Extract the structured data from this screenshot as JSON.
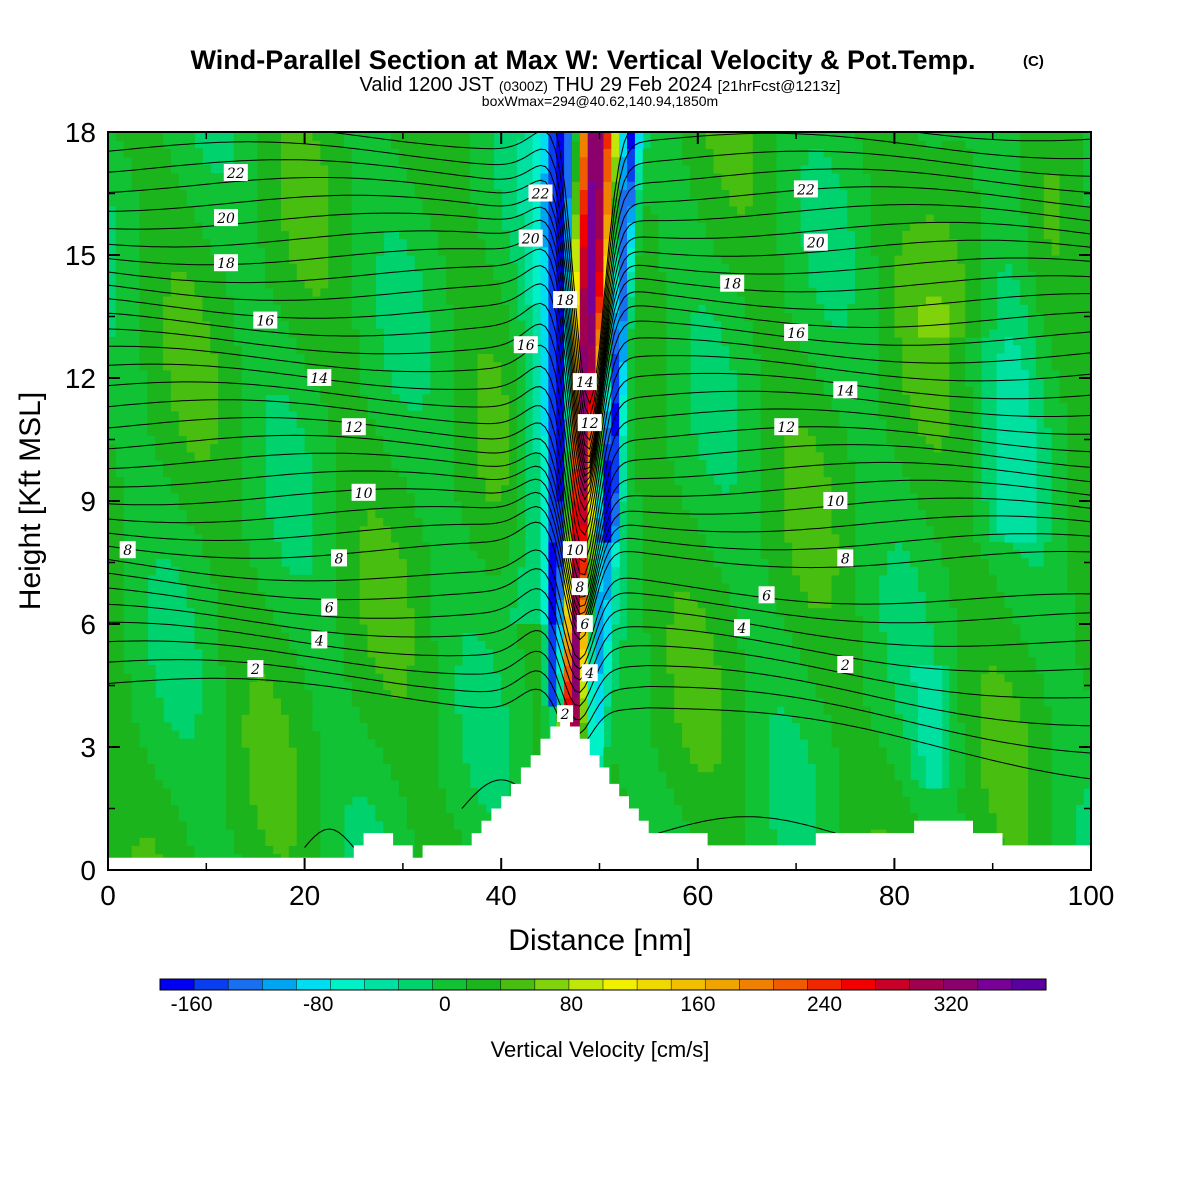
{
  "chart_data": {
    "type": "heatmap",
    "title": "Wind-Parallel Section at Max W: Vertical Velocity & Pot.Temp.",
    "title_mark": "(C)",
    "subtitle": {
      "prefix": "Valid 1200 JST",
      "utc": "(0300Z)",
      "date": "THU 29 Feb 2024",
      "fcst": "[21hrFcst@1213z]"
    },
    "boxinfo": "boxWmax=294@40.62,140.94,1850m",
    "xlabel": "Distance [nm]",
    "ylabel": "Height [Kft MSL]",
    "xlim": [
      0,
      100
    ],
    "ylim": [
      0,
      18
    ],
    "x_ticks": [
      "0",
      "20",
      "40",
      "60",
      "80",
      "100"
    ],
    "y_ticks": [
      "0",
      "3",
      "6",
      "9",
      "12",
      "15",
      "18"
    ],
    "colorbar": {
      "label": "Vertical Velocity [cm/s]",
      "range": [
        -180,
        380
      ],
      "step": 20,
      "tick_labels": [
        "-160",
        "-80",
        "0",
        "80",
        "160",
        "240",
        "320"
      ],
      "colors": [
        "#0000f0",
        "#0a3cf0",
        "#1a6ef0",
        "#00a4f0",
        "#00dcf0",
        "#00f0c8",
        "#00e0a0",
        "#00d26e",
        "#10c234",
        "#1cb41c",
        "#48be10",
        "#80d20a",
        "#c0e60a",
        "#f0f000",
        "#f0d800",
        "#f0c000",
        "#f0a400",
        "#f08000",
        "#f05a00",
        "#f02800",
        "#f00000",
        "#c80028",
        "#a00050",
        "#8c006e",
        "#780096",
        "#5a00a0"
      ]
    },
    "terrain_kft": [
      [
        0,
        0.3
      ],
      [
        25,
        0.3
      ],
      [
        25,
        0.6
      ],
      [
        26,
        0.6
      ],
      [
        26,
        0.9
      ],
      [
        29,
        0.9
      ],
      [
        29,
        0.6
      ],
      [
        31,
        0.6
      ],
      [
        31,
        0.3
      ],
      [
        32,
        0.3
      ],
      [
        32,
        0.6
      ],
      [
        37,
        0.6
      ],
      [
        37,
        0.9
      ],
      [
        38,
        0.9
      ],
      [
        38,
        1.2
      ],
      [
        39,
        1.2
      ],
      [
        39,
        1.5
      ],
      [
        40,
        1.5
      ],
      [
        40,
        1.8
      ],
      [
        41,
        1.8
      ],
      [
        41,
        2.1
      ],
      [
        42,
        2.1
      ],
      [
        42,
        2.5
      ],
      [
        43,
        2.5
      ],
      [
        43,
        2.8
      ],
      [
        44,
        2.8
      ],
      [
        44,
        3.2
      ],
      [
        45,
        3.2
      ],
      [
        45,
        3.5
      ],
      [
        46,
        3.5
      ],
      [
        46,
        3.8
      ],
      [
        47,
        3.8
      ],
      [
        47,
        3.5
      ],
      [
        48,
        3.5
      ],
      [
        48,
        3.2
      ],
      [
        49,
        3.2
      ],
      [
        49,
        2.8
      ],
      [
        50,
        2.8
      ],
      [
        50,
        2.5
      ],
      [
        51,
        2.5
      ],
      [
        51,
        2.1
      ],
      [
        52,
        2.1
      ],
      [
        52,
        1.8
      ],
      [
        53,
        1.8
      ],
      [
        53,
        1.5
      ],
      [
        54,
        1.5
      ],
      [
        54,
        1.2
      ],
      [
        55,
        1.2
      ],
      [
        55,
        0.9
      ],
      [
        61,
        0.9
      ],
      [
        61,
        0.6
      ],
      [
        72,
        0.6
      ],
      [
        72,
        0.9
      ],
      [
        82,
        0.9
      ],
      [
        82,
        1.2
      ],
      [
        88,
        1.2
      ],
      [
        88,
        0.9
      ],
      [
        91,
        0.9
      ],
      [
        91,
        0.6
      ],
      [
        100,
        0.6
      ]
    ],
    "theta_labels": [
      {
        "x": 2,
        "y": 7.8,
        "text": "8"
      },
      {
        "x": 15,
        "y": 4.9,
        "text": "2"
      },
      {
        "x": 21.5,
        "y": 5.6,
        "text": "4"
      },
      {
        "x": 22.5,
        "y": 6.4,
        "text": "6"
      },
      {
        "x": 23.5,
        "y": 7.6,
        "text": "8"
      },
      {
        "x": 26,
        "y": 9.2,
        "text": "10"
      },
      {
        "x": 25,
        "y": 10.8,
        "text": "12"
      },
      {
        "x": 21.5,
        "y": 12.0,
        "text": "14"
      },
      {
        "x": 16,
        "y": 13.4,
        "text": "16"
      },
      {
        "x": 12,
        "y": 14.8,
        "text": "18"
      },
      {
        "x": 12,
        "y": 15.9,
        "text": "20"
      },
      {
        "x": 13,
        "y": 17.0,
        "text": "22"
      },
      {
        "x": 44,
        "y": 16.5,
        "text": "22"
      },
      {
        "x": 43,
        "y": 15.4,
        "text": "20"
      },
      {
        "x": 46.5,
        "y": 13.9,
        "text": "18"
      },
      {
        "x": 42.5,
        "y": 12.8,
        "text": "16"
      },
      {
        "x": 48.5,
        "y": 11.9,
        "text": "14"
      },
      {
        "x": 49,
        "y": 10.9,
        "text": "12"
      },
      {
        "x": 47.5,
        "y": 7.8,
        "text": "10"
      },
      {
        "x": 48,
        "y": 6.9,
        "text": "8"
      },
      {
        "x": 48.5,
        "y": 6.0,
        "text": "6"
      },
      {
        "x": 49,
        "y": 4.8,
        "text": "4"
      },
      {
        "x": 46.5,
        "y": 3.8,
        "text": "2"
      },
      {
        "x": 71,
        "y": 16.6,
        "text": "22"
      },
      {
        "x": 72,
        "y": 15.3,
        "text": "20"
      },
      {
        "x": 63.5,
        "y": 14.3,
        "text": "18"
      },
      {
        "x": 70,
        "y": 13.1,
        "text": "16"
      },
      {
        "x": 75,
        "y": 11.7,
        "text": "14"
      },
      {
        "x": 69,
        "y": 10.8,
        "text": "12"
      },
      {
        "x": 74,
        "y": 9.0,
        "text": "10"
      },
      {
        "x": 75,
        "y": 7.6,
        "text": "8"
      },
      {
        "x": 67,
        "y": 6.7,
        "text": "6"
      },
      {
        "x": 64.5,
        "y": 5.9,
        "text": "4"
      },
      {
        "x": 75,
        "y": 5.0,
        "text": "2"
      }
    ]
  }
}
